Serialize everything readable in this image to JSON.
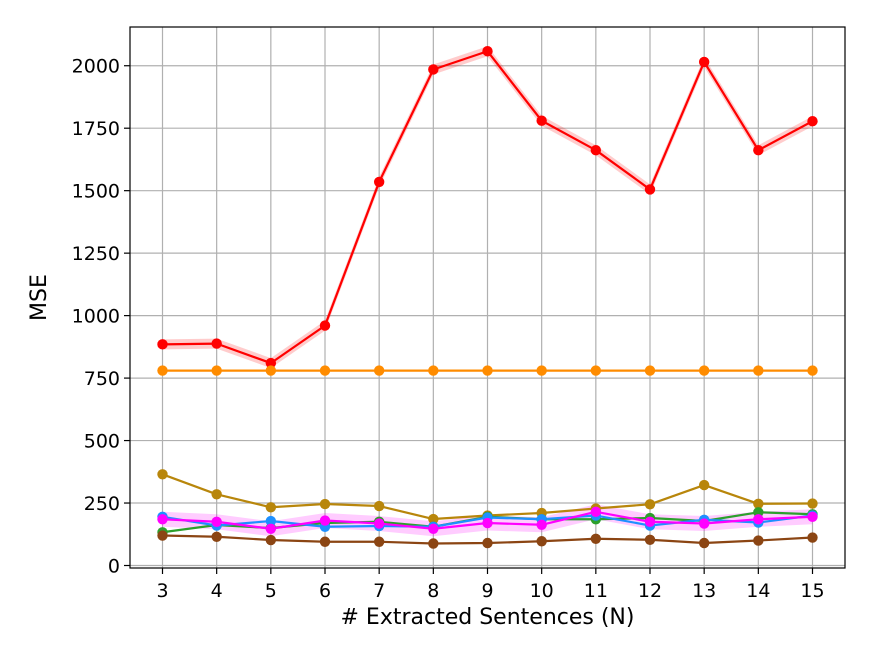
{
  "chart_data": {
    "type": "line",
    "title": "",
    "xlabel": "# Extracted Sentences (N)",
    "ylabel": "MSE",
    "x": [
      3,
      4,
      5,
      6,
      7,
      8,
      9,
      10,
      11,
      12,
      13,
      14,
      15
    ],
    "x_tick_labels": [
      "3",
      "4",
      "5",
      "6",
      "7",
      "8",
      "9",
      "10",
      "11",
      "12",
      "13",
      "14",
      "15"
    ],
    "xlim": [
      2.4,
      15.6
    ],
    "ylim": [
      -10,
      2155
    ],
    "y_ticks": [
      0,
      250,
      500,
      750,
      1000,
      1250,
      1500,
      1750,
      2000
    ],
    "grid": true,
    "legend": "none",
    "series": [
      {
        "color": "#ff0000",
        "values": [
          885,
          888,
          810,
          960,
          1535,
          1985,
          2058,
          1780,
          1662,
          1505,
          2015,
          1662,
          1778
        ],
        "band": 20
      },
      {
        "color": "#ff8c00",
        "values": [
          780,
          780,
          780,
          780,
          780,
          780,
          780,
          780,
          780,
          780,
          780,
          780,
          780
        ],
        "band": 0
      },
      {
        "color": "#b8860b",
        "values": [
          365,
          285,
          233,
          246,
          238,
          186,
          200,
          210,
          228,
          245,
          322,
          247,
          248
        ],
        "band": 0
      },
      {
        "color": "#2ca02c",
        "values": [
          133,
          162,
          150,
          170,
          175,
          155,
          195,
          185,
          185,
          190,
          178,
          213,
          205
        ],
        "band": 0
      },
      {
        "color": "#1e90ff",
        "values": [
          195,
          160,
          178,
          155,
          158,
          155,
          192,
          185,
          200,
          160,
          183,
          172,
          200
        ],
        "band": 0
      },
      {
        "color": "#ff00ff",
        "values": [
          185,
          175,
          147,
          180,
          168,
          147,
          170,
          163,
          215,
          175,
          168,
          185,
          195
        ],
        "band": 30
      },
      {
        "color": "#8b4513",
        "values": [
          120,
          115,
          102,
          95,
          95,
          88,
          90,
          97,
          107,
          103,
          90,
          100,
          112
        ],
        "band": 0
      }
    ]
  }
}
